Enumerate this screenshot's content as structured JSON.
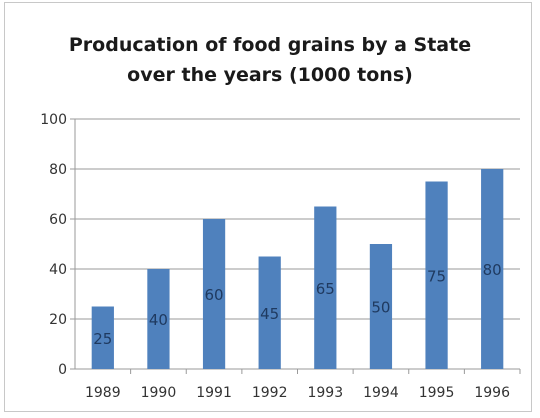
{
  "chart_data": {
    "type": "bar",
    "title_lines": [
      "Producation of food grains by a State",
      "over the years (1000 tons)"
    ],
    "categories": [
      "1989",
      "1990",
      "1991",
      "1992",
      "1993",
      "1994",
      "1995",
      "1996"
    ],
    "values": [
      25,
      40,
      60,
      45,
      65,
      50,
      75,
      80
    ],
    "ylim": [
      0,
      100
    ],
    "yticks": [
      0,
      20,
      40,
      60,
      80,
      100
    ],
    "grid": true,
    "legend": "none",
    "bar_color": "#4f81bd",
    "data_labels": true
  }
}
